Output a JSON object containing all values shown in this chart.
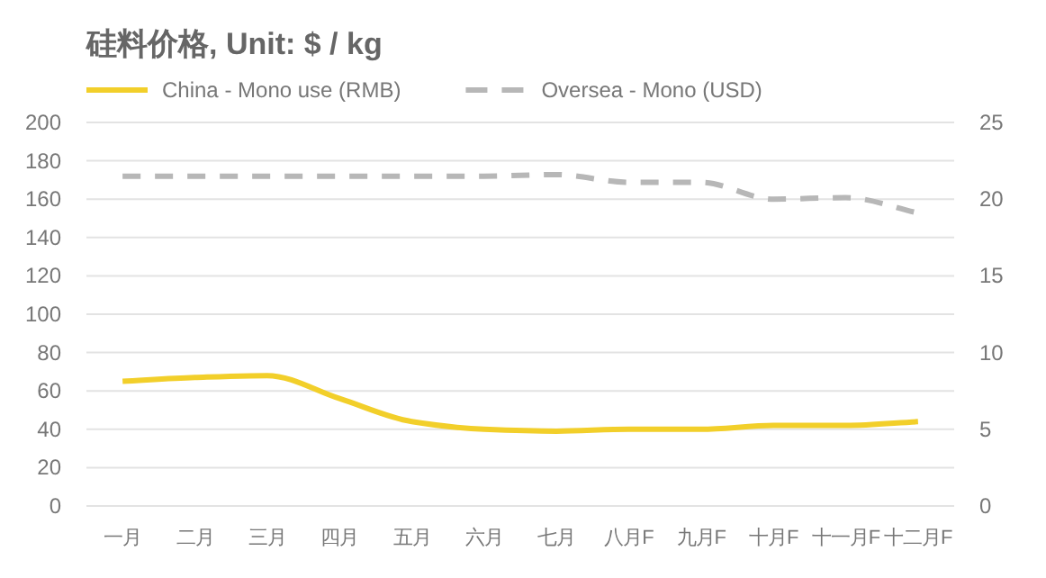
{
  "chart_data": {
    "type": "line",
    "title": "硅料价格, Unit: $ / kg",
    "categories": [
      "一月",
      "二月",
      "三月",
      "四月",
      "五月",
      "六月",
      "七月",
      "八月F",
      "九月F",
      "十月F",
      "十一月F",
      "十二月F"
    ],
    "series": [
      {
        "name": "China - Mono use (RMB)",
        "color": "#f2cf2a",
        "line_style": "solid",
        "values": [
          65,
          67,
          68,
          56,
          44,
          40,
          39,
          40,
          40,
          42,
          42,
          44
        ]
      },
      {
        "name": "Oversea - Mono (USD)",
        "color": "#b7b7b7",
        "line_style": "dashed",
        "axis": "y2",
        "values": [
          21.5,
          21.5,
          21.5,
          21.5,
          21.5,
          21.5,
          21.6,
          21.1,
          21.1,
          20,
          20.1,
          19.1
        ]
      }
    ],
    "ylim": [
      0,
      200
    ],
    "yticks": [
      0,
      20,
      40,
      60,
      80,
      100,
      120,
      140,
      160,
      180,
      200
    ],
    "y2lim": [
      0,
      25
    ],
    "y2ticks": [
      0,
      5,
      10,
      15,
      20,
      25
    ],
    "grid": "y",
    "legend": "top left",
    "marker": "none"
  }
}
